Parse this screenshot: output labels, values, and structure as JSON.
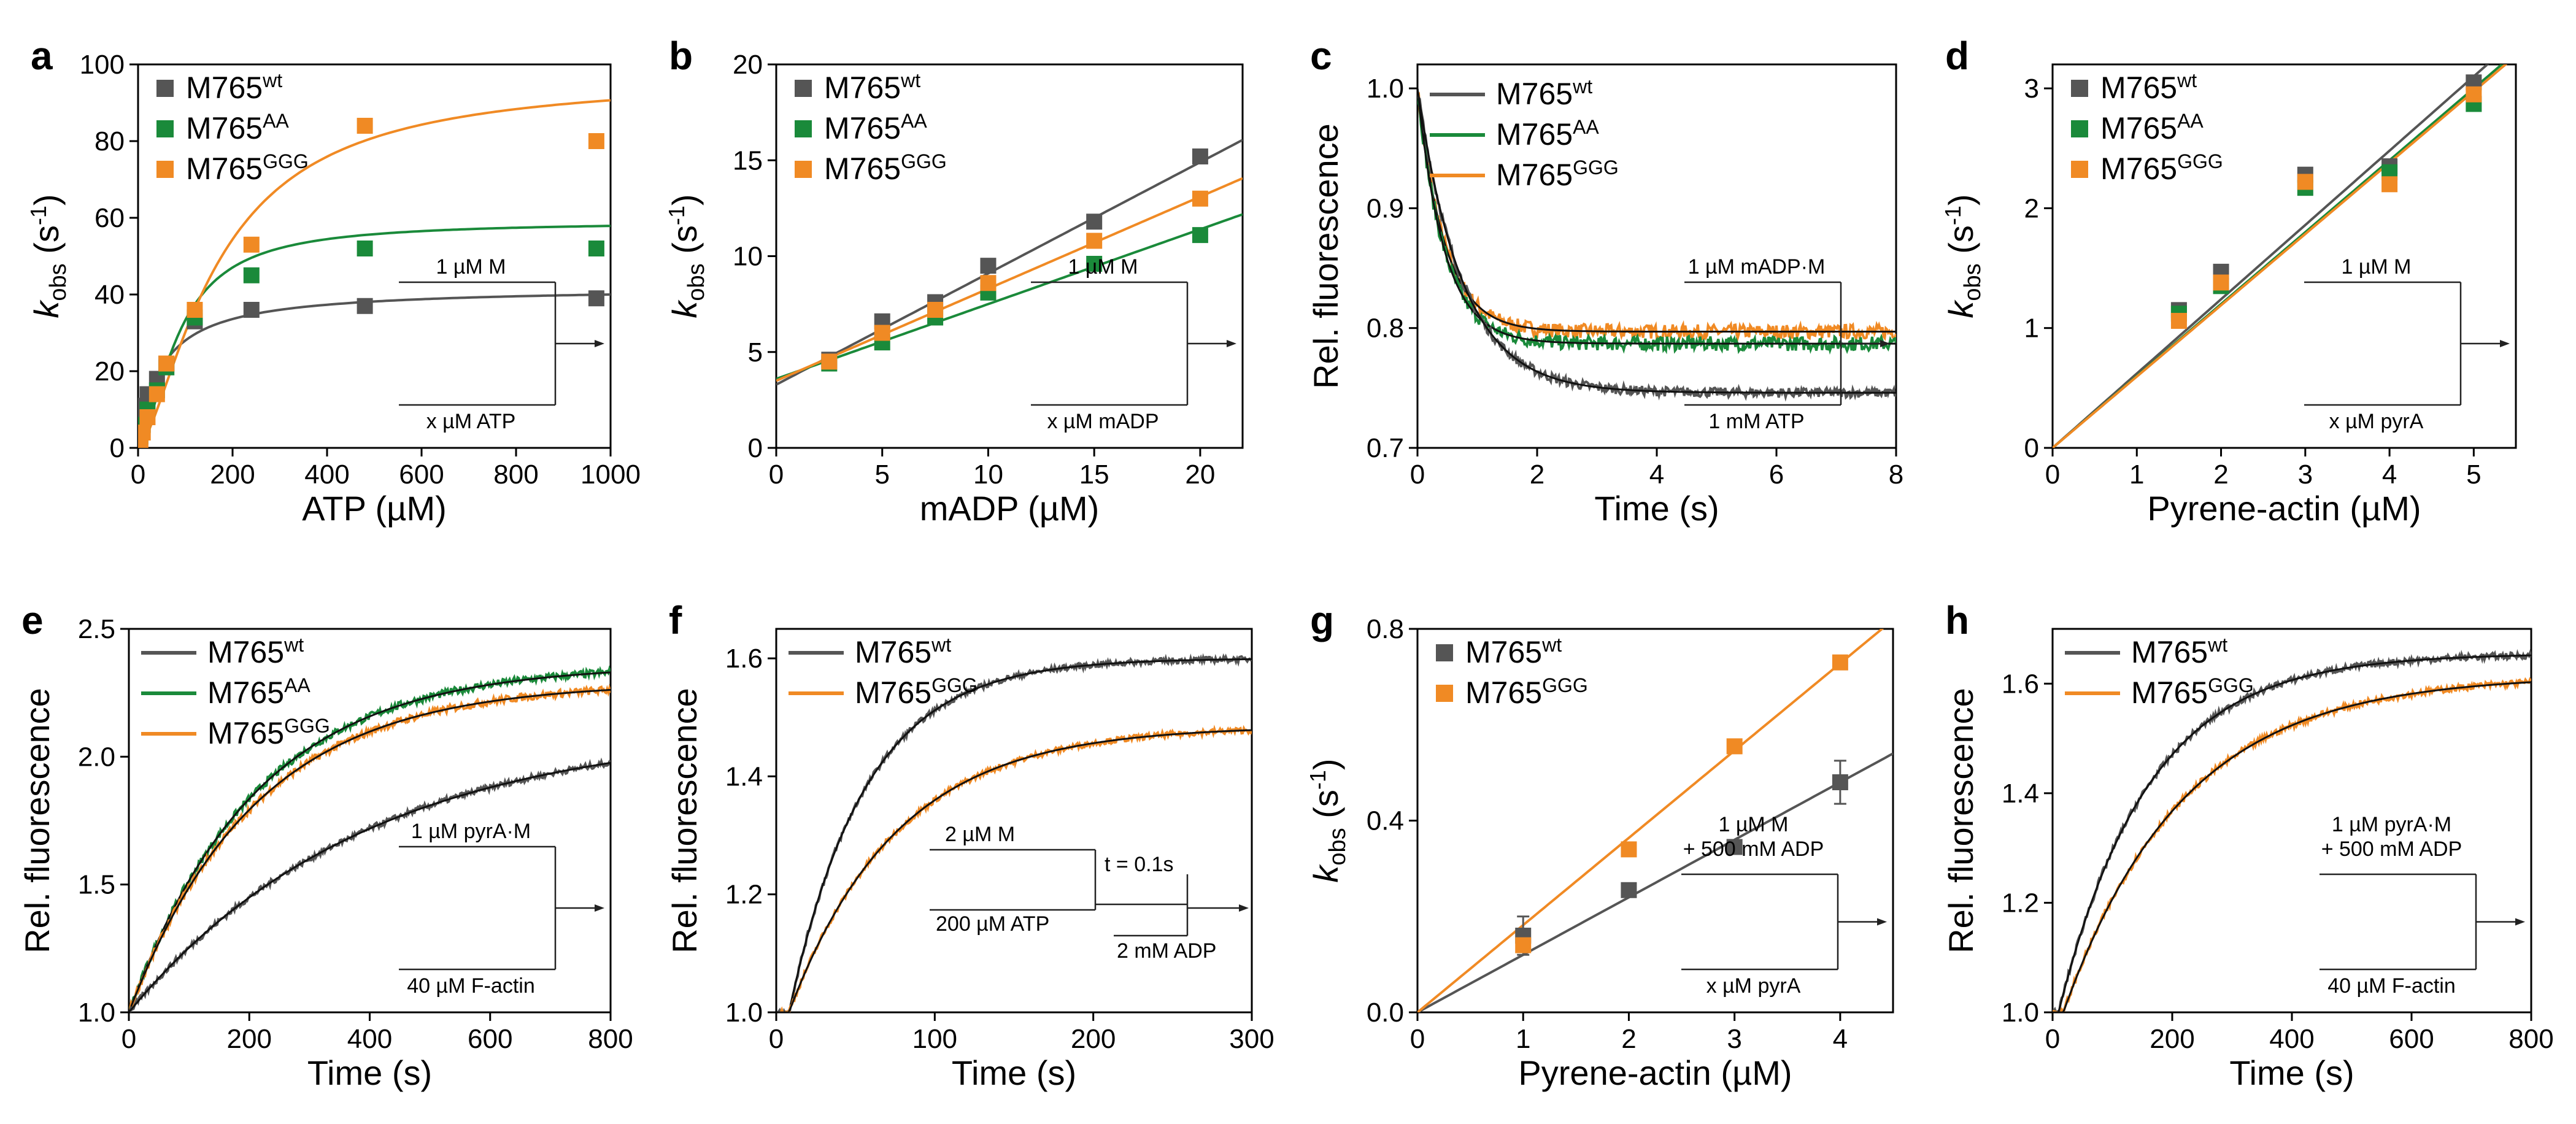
{
  "colors": {
    "wt": "#555555",
    "AA": "#1a8a3a",
    "GGG": "#f08a24",
    "fit": "#111111"
  },
  "chart_data": [
    {
      "panel": "a",
      "type": "scatter",
      "xlabel": "ATP (µM)",
      "ylabel_main": "k",
      "ylabel_sub": "obs",
      "ylabel_unit": " (s",
      "ylabel_exp": "-1",
      "ylabel_close": ")",
      "xlim": [
        0,
        1000
      ],
      "ylim": [
        0,
        100
      ],
      "xticks": [
        0,
        200,
        400,
        600,
        800,
        1000
      ],
      "yticks": [
        0,
        20,
        40,
        60,
        80,
        100
      ],
      "series": [
        {
          "key": "wt",
          "name_base": "M765",
          "name_sup": "wt",
          "points": [
            [
              5,
              7
            ],
            [
              10,
              11
            ],
            [
              20,
              14
            ],
            [
              40,
              18
            ],
            [
              60,
              22
            ],
            [
              120,
              33
            ],
            [
              240,
              36
            ],
            [
              480,
              37
            ],
            [
              970,
              39
            ]
          ],
          "fit": {
            "kind": "mm",
            "vmax": 42,
            "km": 50
          }
        },
        {
          "key": "AA",
          "name_base": "M765",
          "name_sup": "AA",
          "points": [
            [
              5,
              3
            ],
            [
              10,
              6
            ],
            [
              20,
              10
            ],
            [
              40,
              15
            ],
            [
              60,
              21
            ],
            [
              120,
              34
            ],
            [
              240,
              45
            ],
            [
              480,
              52
            ],
            [
              970,
              52
            ]
          ],
          "fit": {
            "kind": "hill",
            "vmax": 59,
            "km": 85,
            "n": 1.6
          }
        },
        {
          "key": "GGG",
          "name_base": "M765",
          "name_sup": "GGG",
          "points": [
            [
              5,
              2
            ],
            [
              10,
              4
            ],
            [
              20,
              8
            ],
            [
              40,
              14
            ],
            [
              60,
              22
            ],
            [
              120,
              36
            ],
            [
              240,
              53
            ],
            [
              480,
              84
            ],
            [
              970,
              80
            ]
          ],
          "fit": {
            "kind": "hill",
            "vmax": 97,
            "km": 170,
            "n": 1.5
          }
        }
      ],
      "legend_position": "top-left",
      "scheme": {
        "top": "1 µM M",
        "bottom": "x µM ATP"
      }
    },
    {
      "panel": "b",
      "type": "scatter",
      "xlabel": "mADP (µM)",
      "ylabel_main": "k",
      "ylabel_sub": "obs",
      "ylabel_unit": " (s",
      "ylabel_exp": "-1",
      "ylabel_close": ")",
      "xlim": [
        0,
        22
      ],
      "ylim": [
        0,
        20
      ],
      "xticks": [
        0,
        5,
        10,
        15,
        20
      ],
      "yticks": [
        0,
        5,
        10,
        15,
        20
      ],
      "series": [
        {
          "key": "wt",
          "name_base": "M765",
          "name_sup": "wt",
          "points": [
            [
              2.5,
              4.6
            ],
            [
              5,
              6.6
            ],
            [
              7.5,
              7.6
            ],
            [
              10,
              9.5
            ],
            [
              15,
              11.8
            ],
            [
              20,
              15.2
            ]
          ],
          "fit": {
            "kind": "lin",
            "m": 0.58,
            "b": 3.3
          }
        },
        {
          "key": "AA",
          "name_base": "M765",
          "name_sup": "AA",
          "points": [
            [
              2.5,
              4.4
            ],
            [
              5,
              5.5
            ],
            [
              7.5,
              6.8
            ],
            [
              10,
              8.1
            ],
            [
              15,
              9.6
            ],
            [
              20,
              11.1
            ]
          ],
          "fit": {
            "kind": "lin",
            "m": 0.39,
            "b": 3.6
          }
        },
        {
          "key": "GGG",
          "name_base": "M765",
          "name_sup": "GGG",
          "points": [
            [
              2.5,
              4.5
            ],
            [
              5,
              6.0
            ],
            [
              7.5,
              7.2
            ],
            [
              10,
              8.6
            ],
            [
              15,
              10.8
            ],
            [
              20,
              13.0
            ]
          ],
          "fit": {
            "kind": "lin",
            "m": 0.48,
            "b": 3.5
          }
        }
      ],
      "legend_position": "top-left",
      "scheme": {
        "top": "1 µM M",
        "bottom": "x µM mADP"
      }
    },
    {
      "panel": "c",
      "type": "line",
      "xlabel": "Time (s)",
      "ylabel": "Rel. fluorescence",
      "xlim": [
        0,
        8
      ],
      "ylim": [
        0.7,
        1.02
      ],
      "xticks": [
        0,
        2,
        4,
        6,
        8
      ],
      "yticks": [
        0.7,
        0.8,
        0.9,
        1.0
      ],
      "series": [
        {
          "key": "GGG",
          "name_base": "M765",
          "name_sup": "GGG",
          "fit": {
            "kind": "exp",
            "y0": 1.0,
            "yinf": 0.797,
            "tau": 0.45
          },
          "noise": 0.006
        },
        {
          "key": "AA",
          "name_base": "M765",
          "name_sup": "AA",
          "fit": {
            "kind": "exp",
            "y0": 1.0,
            "yinf": 0.787,
            "tau": 0.45
          },
          "noise": 0.006
        },
        {
          "key": "wt",
          "name_base": "M765",
          "name_sup": "wt",
          "fit": {
            "kind": "exp",
            "y0": 1.0,
            "yinf": 0.746,
            "tau": 0.75
          },
          "noise": 0.004
        }
      ],
      "legend_order": [
        "wt",
        "AA",
        "GGG"
      ],
      "legend_position": "top-left",
      "scheme": {
        "top": "1 µM mADP·M",
        "bottom": "1 mM ATP"
      }
    },
    {
      "panel": "d",
      "type": "scatter",
      "xlabel": "Pyrene-actin (µM)",
      "ylabel_main": "k",
      "ylabel_sub": "obs",
      "ylabel_unit": " (s",
      "ylabel_exp": "-1",
      "ylabel_close": ")",
      "xlim": [
        0,
        5.5
      ],
      "ylim": [
        0,
        3.2
      ],
      "xticks": [
        0,
        1,
        2,
        3,
        4,
        5
      ],
      "yticks": [
        0,
        1,
        2,
        3
      ],
      "series": [
        {
          "key": "wt",
          "name_base": "M765",
          "name_sup": "wt",
          "points": [
            [
              1.5,
              1.15
            ],
            [
              2,
              1.47
            ],
            [
              3,
              2.28
            ],
            [
              4,
              2.35
            ],
            [
              5,
              3.05
            ]
          ],
          "fit": {
            "kind": "lin",
            "m": 0.62,
            "b": 0
          }
        },
        {
          "key": "AA",
          "name_base": "M765",
          "name_sup": "AA",
          "points": [
            [
              1.5,
              1.12
            ],
            [
              2,
              1.35
            ],
            [
              3,
              2.17
            ],
            [
              4,
              2.3
            ],
            [
              5,
              2.87
            ]
          ],
          "fit": {
            "kind": "lin",
            "m": 0.6,
            "b": 0
          }
        },
        {
          "key": "GGG",
          "name_base": "M765",
          "name_sup": "GGG",
          "points": [
            [
              1.5,
              1.06
            ],
            [
              2,
              1.38
            ],
            [
              3,
              2.22
            ],
            [
              4,
              2.2
            ],
            [
              5,
              2.95
            ]
          ],
          "fit": {
            "kind": "lin",
            "m": 0.595,
            "b": 0
          }
        }
      ],
      "legend_position": "top-left",
      "scheme": {
        "top": "1 µM M",
        "bottom": "x µM pyrA"
      }
    },
    {
      "panel": "e",
      "type": "line",
      "xlabel": "Time (s)",
      "ylabel": "Rel. fluorescence",
      "xlim": [
        0,
        800
      ],
      "ylim": [
        1.0,
        2.5
      ],
      "xticks": [
        0,
        200,
        400,
        600,
        800
      ],
      "yticks": [
        1.0,
        1.5,
        2.0,
        2.5
      ],
      "series": [
        {
          "key": "AA",
          "name_base": "M765",
          "name_sup": "AA",
          "fit": {
            "kind": "exp",
            "y0": 1.0,
            "yinf": 2.36,
            "tau": 210
          },
          "noise": 0.015
        },
        {
          "key": "GGG",
          "name_base": "M765",
          "name_sup": "GGG",
          "fit": {
            "kind": "exp",
            "y0": 1.0,
            "yinf": 2.29,
            "tau": 210
          },
          "noise": 0.015
        },
        {
          "key": "wt",
          "name_base": "M765",
          "name_sup": "wt",
          "fit": {
            "kind": "exp",
            "y0": 1.0,
            "yinf": 2.12,
            "tau": 390
          },
          "noise": 0.012
        }
      ],
      "legend_order": [
        "wt",
        "AA",
        "GGG"
      ],
      "legend_position": "top-left",
      "scheme": {
        "top": "1 µM pyrA·M",
        "bottom": "40 µM F-actin"
      }
    },
    {
      "panel": "f",
      "type": "line",
      "xlabel": "Time (s)",
      "ylabel": "Rel. fluorescence",
      "xlim": [
        0,
        300
      ],
      "ylim": [
        1.0,
        1.65
      ],
      "xticks": [
        0,
        100,
        200,
        300
      ],
      "yticks": [
        1.0,
        1.2,
        1.4,
        1.6
      ],
      "series": [
        {
          "key": "wt",
          "name_base": "M765",
          "name_sup": "wt",
          "fit": {
            "kind": "exp",
            "y0": 1.0,
            "yinf": 1.6,
            "tau": 48,
            "t0": 8
          },
          "noise": 0.005
        },
        {
          "key": "GGG",
          "name_base": "M765",
          "name_sup": "GGG",
          "fit": {
            "kind": "exp",
            "y0": 1.0,
            "yinf": 1.485,
            "tau": 68,
            "t0": 8
          },
          "noise": 0.005
        }
      ],
      "legend_order": [
        "wt",
        "GGG"
      ],
      "legend_position": "top-left",
      "scheme": {
        "top": "2 µM M",
        "mid": "200 µM ATP",
        "delay": "t = 0.1s",
        "bottom": "2 mM ADP"
      }
    },
    {
      "panel": "g",
      "type": "scatter",
      "xlabel": "Pyrene-actin (µM)",
      "ylabel_main": "k",
      "ylabel_sub": "obs",
      "ylabel_unit": " (s",
      "ylabel_exp": "-1",
      "ylabel_close": ")",
      "xlim": [
        0,
        4.5
      ],
      "ylim": [
        0,
        0.8
      ],
      "xticks": [
        0,
        1,
        2,
        3,
        4
      ],
      "yticks": [
        0.0,
        0.4,
        0.8
      ],
      "series": [
        {
          "key": "wt",
          "name_base": "M765",
          "name_sup": "wt",
          "points": [
            [
              1,
              0.16
            ],
            [
              2,
              0.255
            ],
            [
              3,
              0.345
            ],
            [
              4,
              0.48
            ]
          ],
          "err": [
            0.04,
            0.01,
            0.01,
            0.045
          ],
          "fit": {
            "kind": "lin",
            "m": 0.12,
            "b": 0
          }
        },
        {
          "key": "GGG",
          "name_base": "M765",
          "name_sup": "GGG",
          "points": [
            [
              1,
              0.14
            ],
            [
              2,
              0.34
            ],
            [
              3,
              0.555
            ],
            [
              4,
              0.73
            ]
          ],
          "fit": {
            "kind": "lin",
            "m": 0.182,
            "b": 0
          }
        }
      ],
      "legend_position": "top-left",
      "scheme": {
        "top": "1 µM M",
        "top2": "+ 500 mM ADP",
        "bottom": "x µM pyrA"
      }
    },
    {
      "panel": "h",
      "type": "line",
      "xlabel": "Time (s)",
      "ylabel": "Rel. fluorescence",
      "xlim": [
        0,
        800
      ],
      "ylim": [
        1.0,
        1.7
      ],
      "xticks": [
        0,
        200,
        400,
        600,
        800
      ],
      "yticks": [
        1.0,
        1.2,
        1.4,
        1.6
      ],
      "series": [
        {
          "key": "wt",
          "name_base": "M765",
          "name_sup": "wt",
          "fit": {
            "kind": "exp",
            "y0": 1.0,
            "yinf": 1.655,
            "tau": 150,
            "t0": 10
          },
          "noise": 0.006
        },
        {
          "key": "GGG",
          "name_base": "M765",
          "name_sup": "GGG",
          "fit": {
            "kind": "exp",
            "y0": 1.0,
            "yinf": 1.615,
            "tau": 200,
            "t0": 18
          },
          "noise": 0.006
        }
      ],
      "legend_order": [
        "wt",
        "GGG"
      ],
      "legend_position": "top-left",
      "scheme": {
        "top": "1 µM pyrA·M",
        "top2": "+ 500 mM ADP",
        "bottom": "40 µM F-actin"
      }
    }
  ]
}
